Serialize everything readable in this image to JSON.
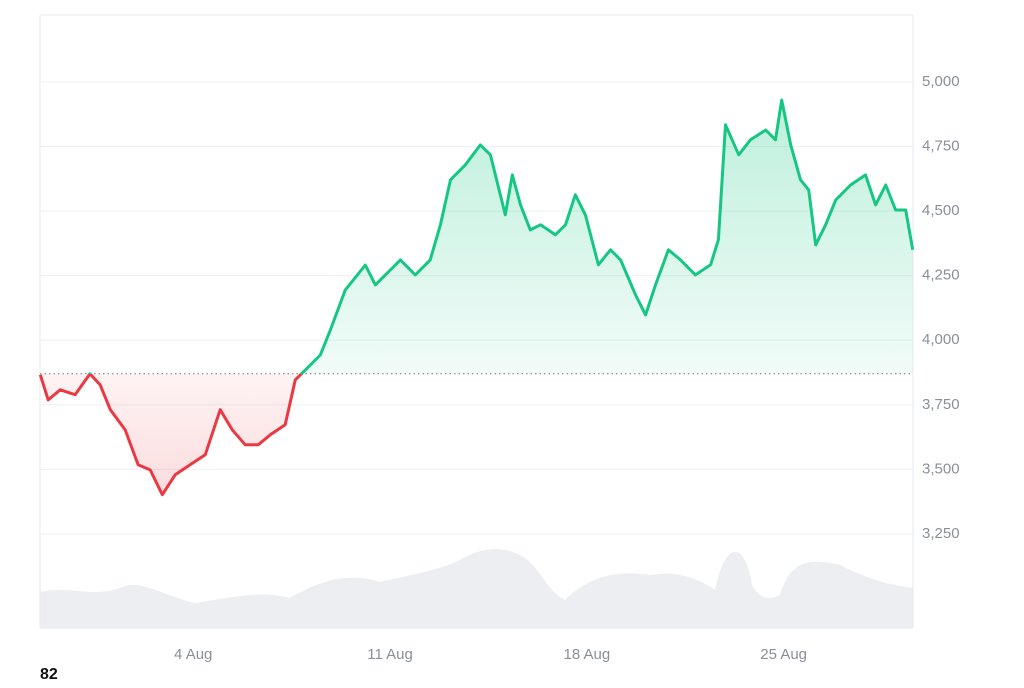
{
  "chart_data": {
    "type": "line",
    "x": [
      -1.44,
      -1.16,
      -0.73,
      -0.2,
      0.33,
      0.69,
      1.05,
      1.58,
      2.04,
      2.47,
      2.9,
      3.36,
      3.89,
      4.43,
      4.96,
      5.39,
      5.85,
      6.31,
      6.74,
      7.27,
      7.63,
      7.99,
      8.52,
      8.88,
      9.41,
      10.12,
      10.48,
      11.01,
      11.37,
      11.9,
      12.43,
      12.79,
      13.15,
      13.68,
      14.21,
      14.57,
      15.1,
      15.35,
      15.64,
      15.99,
      16.35,
      16.88,
      17.24,
      17.59,
      17.95,
      18.41,
      18.84,
      19.2,
      19.73,
      20.09,
      20.44,
      20.9,
      21.33,
      21.86,
      22.4,
      22.68,
      22.93,
      23.4,
      23.82,
      24.36,
      24.71,
      24.93,
      25.25,
      25.6,
      25.89,
      26.14,
      26.49,
      26.85,
      27.38,
      27.91,
      28.27,
      28.63,
      28.98,
      29.34,
      29.59
    ],
    "series": [
      {
        "values": [
          3866,
          3769,
          3808,
          3789,
          3870,
          3827,
          3731,
          3653,
          3518,
          3498,
          3402,
          3479,
          3518,
          3557,
          3731,
          3653,
          3595,
          3595,
          3634,
          3673,
          3847,
          3885,
          3943,
          4040,
          4195,
          4291,
          4214,
          4272,
          4311,
          4253,
          4311,
          4447,
          4621,
          4679,
          4756,
          4718,
          4485,
          4640,
          4524,
          4427,
          4447,
          4408,
          4447,
          4563,
          4485,
          4292,
          4350,
          4311,
          4176,
          4098,
          4214,
          4350,
          4311,
          4253,
          4292,
          4389,
          4834,
          4718,
          4776,
          4814,
          4776,
          4930,
          4756,
          4621,
          4582,
          4369,
          4447,
          4543,
          4601,
          4640,
          4524,
          4601,
          4504,
          4504,
          4350
        ],
        "color_up": "#16c784",
        "color_down": "#ea3943"
      }
    ],
    "baseline": 3870,
    "xlim": [
      -1.45,
      29.6
    ],
    "xticks": [
      {
        "value": 4,
        "label": "4 Aug"
      },
      {
        "value": 11,
        "label": "11 Aug"
      },
      {
        "value": 18,
        "label": "18 Aug"
      },
      {
        "value": 25,
        "label": "25 Aug"
      }
    ],
    "ylim": [
      2886,
      5259
    ],
    "yticks": [
      {
        "value": 3250,
        "label": "3,250"
      },
      {
        "value": 3500,
        "label": "3,500"
      },
      {
        "value": 3750,
        "label": "3,750"
      },
      {
        "value": 4000,
        "label": "4,000"
      },
      {
        "value": 4250,
        "label": "4,250"
      },
      {
        "value": 4500,
        "label": "4,500"
      },
      {
        "value": 4750,
        "label": "4,750"
      },
      {
        "value": 5000,
        "label": "5,000"
      }
    ],
    "grid": true,
    "annotation": "82"
  }
}
